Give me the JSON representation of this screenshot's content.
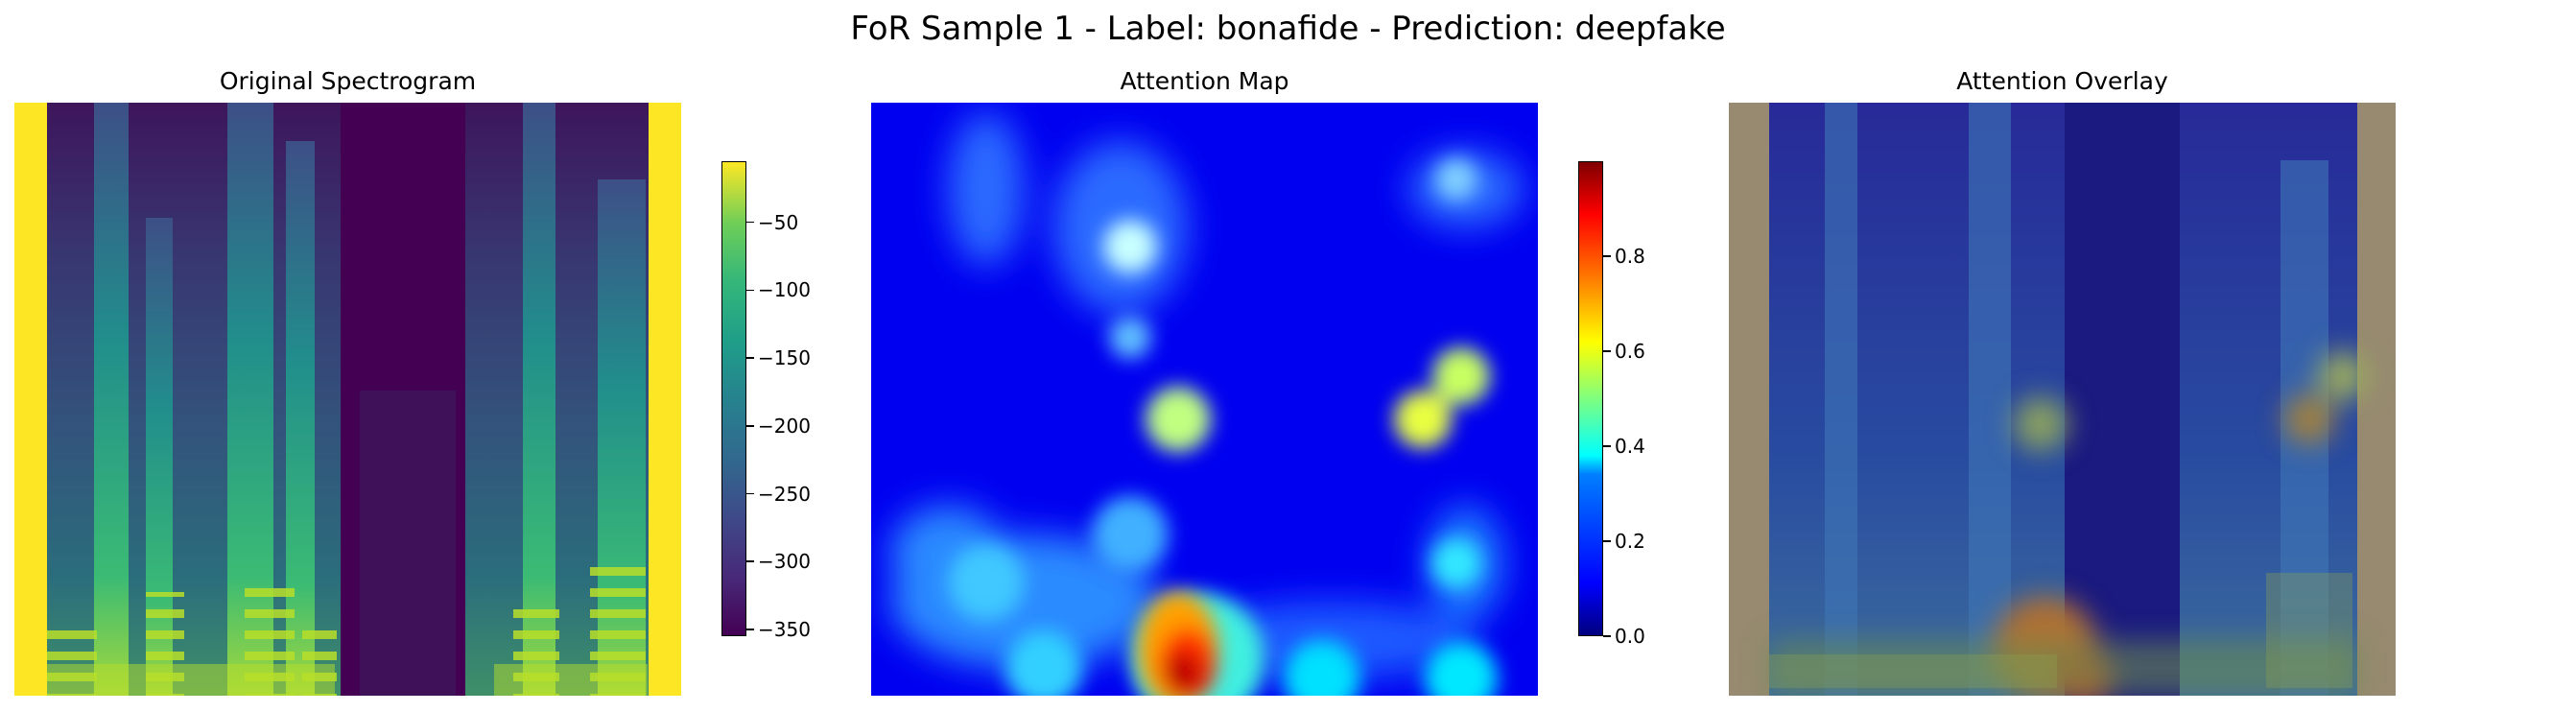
{
  "figure": {
    "suptitle": "FoR Sample 1 - Label: bonafide - Prediction: deepfake"
  },
  "panels": [
    {
      "title": "Original Spectrogram"
    },
    {
      "title": "Attention Map"
    },
    {
      "title": "Attention Overlay"
    }
  ],
  "chart_data": [
    {
      "type": "heatmap",
      "title": "Original Spectrogram",
      "colormap": "viridis",
      "colorbar": {
        "range": [
          -355,
          -5
        ],
        "ticks": [
          -50,
          -100,
          -150,
          -200,
          -250,
          -300,
          -350
        ],
        "tick_labels": [
          "−50",
          "−100",
          "−150",
          "−200",
          "−250",
          "−300",
          "−350"
        ]
      },
      "axes": "off"
    },
    {
      "type": "heatmap",
      "title": "Attention Map",
      "colormap": "jet",
      "colorbar": {
        "range": [
          0,
          1
        ],
        "ticks": [
          0.0,
          0.2,
          0.4,
          0.6,
          0.8
        ],
        "tick_labels": [
          "0.0",
          "0.2",
          "0.4",
          "0.6",
          "0.8"
        ]
      },
      "axes": "off"
    },
    {
      "type": "heatmap",
      "title": "Attention Overlay",
      "description_colormap": "jet over viridis",
      "axes": "off"
    }
  ]
}
